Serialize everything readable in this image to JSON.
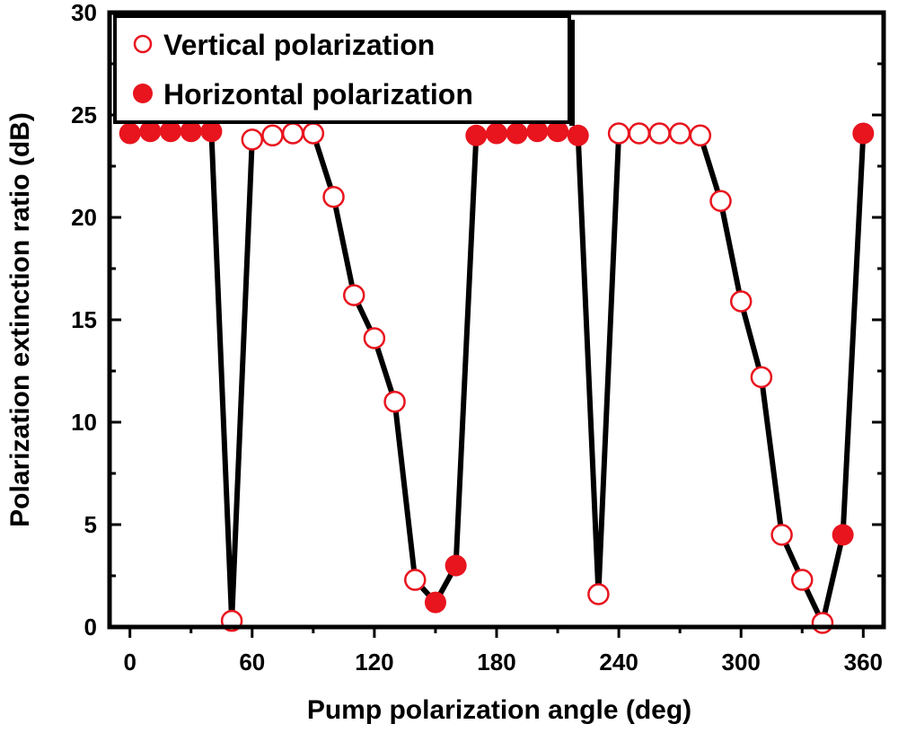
{
  "chart_data": {
    "type": "scatter",
    "xlabel": "Pump polarization angle (deg)",
    "ylabel": "Polarization extinction ratio (dB)",
    "xlim": [
      -10,
      370
    ],
    "ylim": [
      0,
      30
    ],
    "xticks": [
      0,
      60,
      120,
      180,
      240,
      300,
      360
    ],
    "yticks": [
      0,
      5,
      10,
      15,
      20,
      25,
      30
    ],
    "legend_position": "top-left",
    "line_color": "#000000",
    "marker_color": "#e8141e",
    "series": [
      {
        "name": "Vertical polarization",
        "marker": "open-circle",
        "points": [
          [
            50,
            0.3
          ],
          [
            60,
            23.8
          ],
          [
            70,
            24.0
          ],
          [
            80,
            24.1
          ],
          [
            90,
            24.1
          ],
          [
            100,
            21.0
          ],
          [
            110,
            16.2
          ],
          [
            120,
            14.1
          ],
          [
            130,
            11.0
          ],
          [
            140,
            2.3
          ],
          [
            230,
            1.6
          ],
          [
            240,
            24.1
          ],
          [
            250,
            24.1
          ],
          [
            260,
            24.1
          ],
          [
            270,
            24.1
          ],
          [
            280,
            24.0
          ],
          [
            290,
            20.8
          ],
          [
            300,
            15.9
          ],
          [
            310,
            12.2
          ],
          [
            320,
            4.5
          ],
          [
            330,
            2.3
          ],
          [
            340,
            0.2
          ]
        ]
      },
      {
        "name": "Horizontal polarization",
        "marker": "filled-circle",
        "points": [
          [
            0,
            24.1
          ],
          [
            10,
            24.2
          ],
          [
            20,
            24.2
          ],
          [
            30,
            24.2
          ],
          [
            40,
            24.2
          ],
          [
            150,
            1.2
          ],
          [
            160,
            3.0
          ],
          [
            170,
            24.0
          ],
          [
            180,
            24.1
          ],
          [
            190,
            24.1
          ],
          [
            200,
            24.2
          ],
          [
            210,
            24.2
          ],
          [
            220,
            24.0
          ],
          [
            350,
            4.5
          ],
          [
            360,
            24.1
          ]
        ]
      }
    ]
  }
}
